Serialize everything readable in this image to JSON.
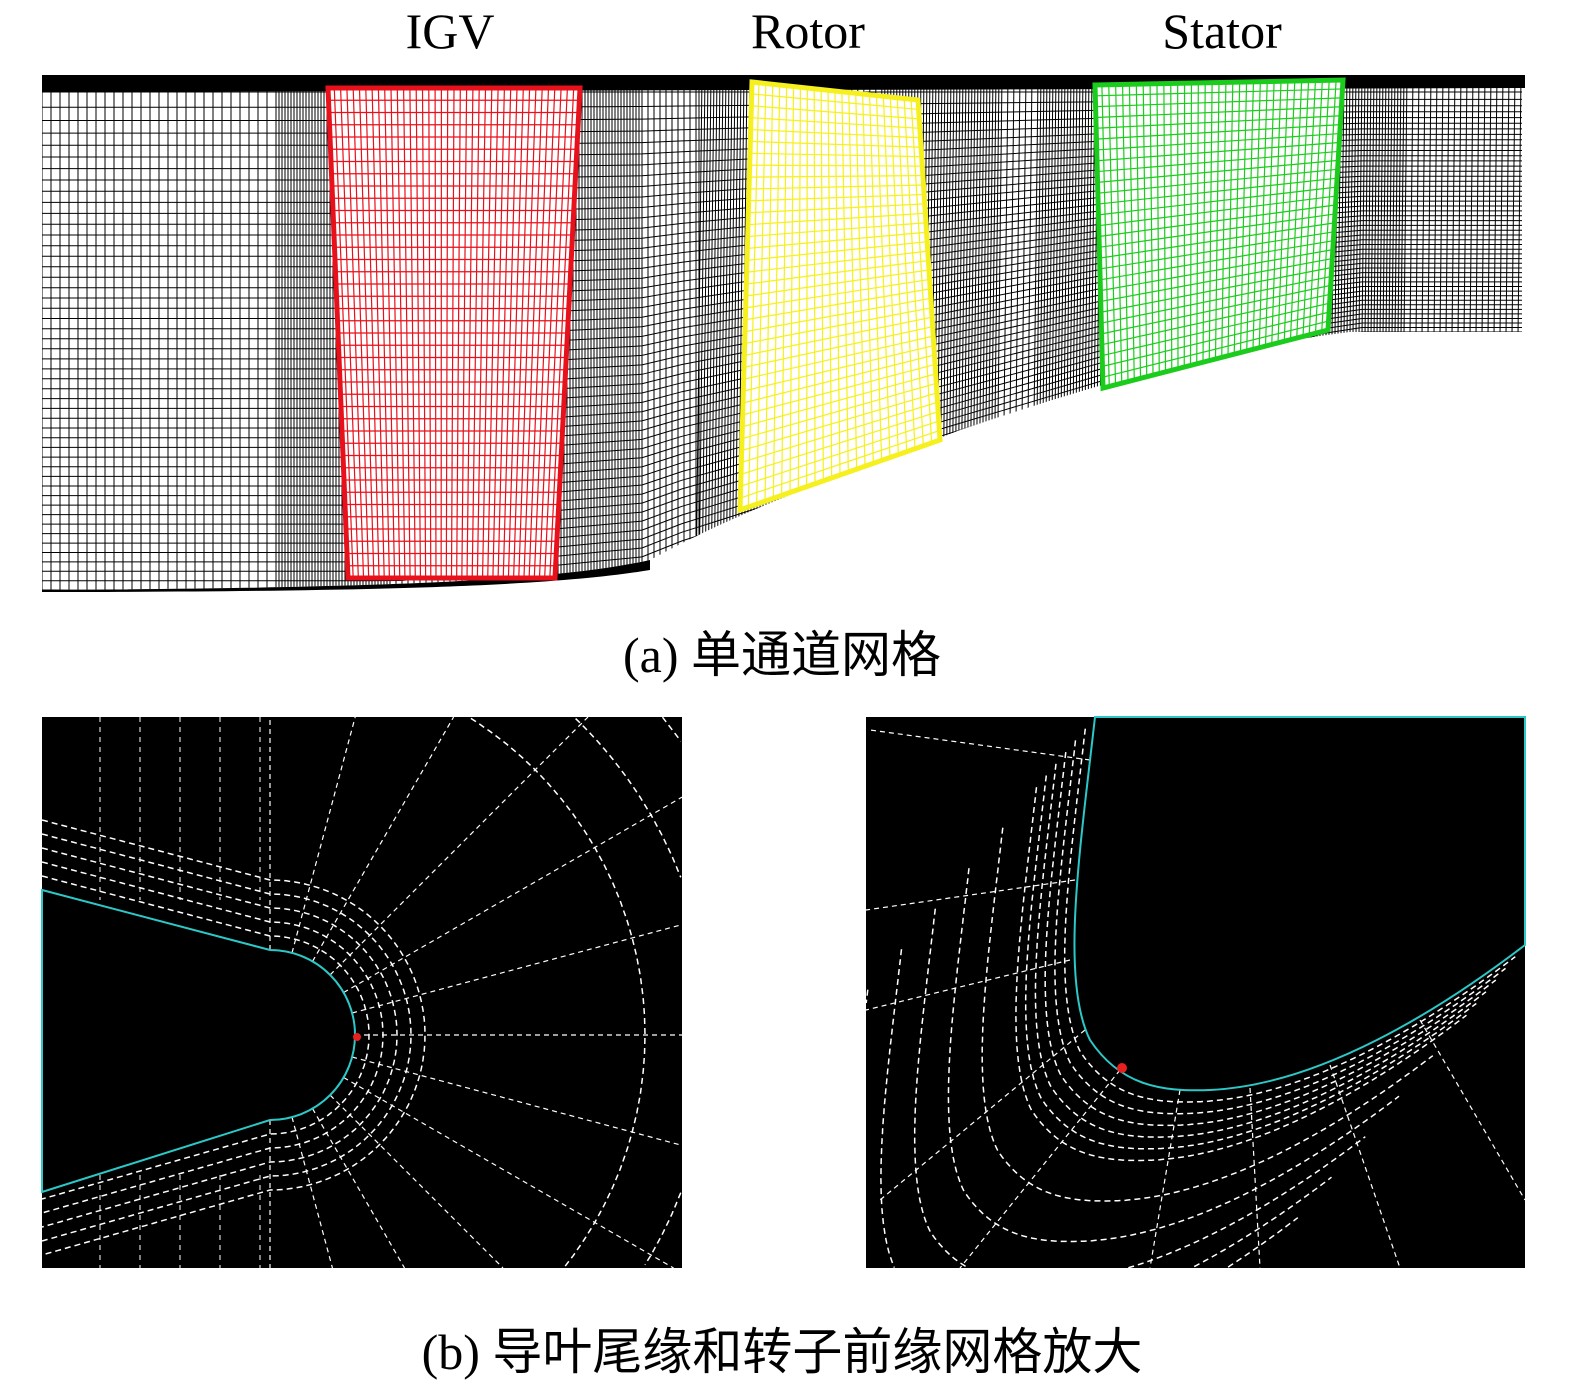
{
  "figure_a": {
    "row_labels": [
      "IGV",
      "Rotor",
      "Stator"
    ],
    "caption": "(a) 单通道网格",
    "colors": {
      "igv": "#e8101a",
      "rotor": "#f5f01e",
      "stator": "#1ccc1c",
      "mesh": "#000000"
    }
  },
  "figure_b": {
    "caption": "(b) 导叶尾缘和转子前缘网格放大",
    "colors": {
      "background": "#000000",
      "grid": "#ffffff",
      "wall": "#2cc8c8",
      "marker": "#e82020"
    }
  }
}
